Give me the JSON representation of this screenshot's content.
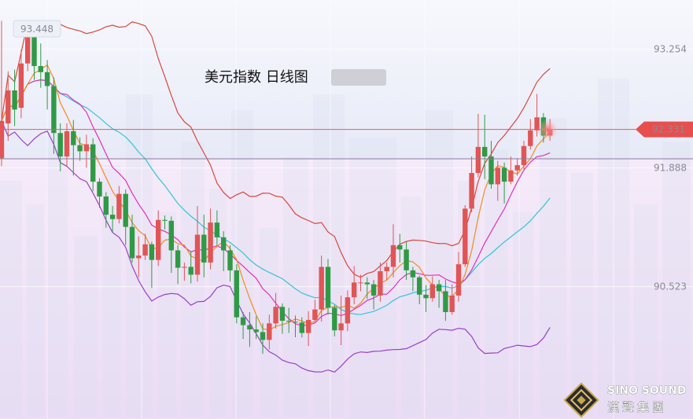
{
  "chart_data": {
    "type": "candlestick",
    "title": "美元指数 日线图",
    "y_ticks": [
      "93.254",
      "91.888",
      "90.523"
    ],
    "high_label": "93.448",
    "last_price_label": "92.331",
    "ylim": [
      89.0,
      93.82
    ],
    "candles": [
      [
        92.0,
        92.43,
        93.58,
        91.91
      ],
      [
        92.4,
        92.78,
        93.0,
        92.2
      ],
      [
        92.78,
        92.56,
        93.02,
        92.37
      ],
      [
        92.58,
        93.09,
        93.25,
        92.46
      ],
      [
        93.09,
        93.4,
        93.5,
        93.0
      ],
      [
        93.4,
        93.06,
        93.45,
        92.9
      ],
      [
        93.06,
        92.99,
        93.32,
        92.81
      ],
      [
        92.99,
        92.83,
        93.13,
        92.56
      ],
      [
        92.83,
        92.29,
        92.93,
        92.05
      ],
      [
        92.29,
        92.02,
        92.4,
        91.85
      ],
      [
        92.02,
        92.31,
        92.4,
        91.9
      ],
      [
        92.31,
        92.15,
        92.44,
        91.8
      ],
      [
        92.15,
        92.08,
        92.24,
        91.97
      ],
      [
        92.08,
        92.16,
        92.27,
        91.89
      ],
      [
        92.16,
        91.73,
        92.23,
        91.62
      ],
      [
        91.73,
        91.56,
        91.77,
        91.43
      ],
      [
        91.56,
        91.35,
        91.61,
        91.2
      ],
      [
        91.35,
        91.3,
        91.45,
        91.15
      ],
      [
        91.3,
        91.59,
        91.68,
        91.25
      ],
      [
        91.59,
        91.21,
        91.64,
        91.0
      ],
      [
        91.21,
        90.85,
        91.35,
        90.8
      ],
      [
        90.85,
        90.88,
        91.1,
        90.63
      ],
      [
        90.88,
        91.01,
        91.13,
        90.83
      ],
      [
        91.01,
        90.83,
        91.04,
        90.51
      ],
      [
        90.83,
        91.29,
        91.4,
        90.76
      ],
      [
        91.29,
        91.28,
        91.34,
        91.18
      ],
      [
        91.28,
        90.94,
        91.33,
        90.68
      ],
      [
        90.94,
        90.74,
        91.0,
        90.55
      ],
      [
        90.74,
        90.75,
        90.8,
        90.59
      ],
      [
        90.75,
        90.66,
        90.93,
        90.56
      ],
      [
        90.66,
        91.12,
        91.45,
        90.58
      ],
      [
        91.12,
        90.8,
        91.35,
        90.63
      ],
      [
        90.8,
        91.26,
        91.42,
        90.72
      ],
      [
        91.26,
        91.09,
        91.4,
        91.0
      ],
      [
        91.09,
        90.94,
        91.16,
        90.7
      ],
      [
        90.94,
        90.71,
        91.0,
        90.58
      ],
      [
        90.71,
        90.17,
        90.78,
        90.1
      ],
      [
        90.17,
        90.08,
        90.23,
        89.92
      ],
      [
        90.08,
        90.03,
        90.23,
        89.83
      ],
      [
        90.03,
        90.0,
        90.18,
        89.92
      ],
      [
        90.0,
        89.91,
        90.1,
        89.75
      ],
      [
        89.91,
        90.1,
        90.2,
        89.8
      ],
      [
        90.1,
        90.29,
        90.45,
        90.04
      ],
      [
        90.29,
        90.13,
        90.33,
        89.98
      ],
      [
        90.13,
        90.12,
        90.28,
        89.99
      ],
      [
        90.12,
        90.11,
        90.19,
        89.94
      ],
      [
        90.11,
        89.99,
        90.17,
        89.94
      ],
      [
        89.99,
        90.14,
        90.24,
        89.84
      ],
      [
        90.14,
        90.26,
        90.37,
        90.13
      ],
      [
        90.26,
        90.75,
        90.88,
        90.12
      ],
      [
        90.75,
        90.28,
        90.84,
        90.2
      ],
      [
        90.28,
        90.02,
        90.31,
        89.95
      ],
      [
        90.02,
        90.1,
        90.42,
        89.85
      ],
      [
        90.1,
        90.4,
        90.48,
        90.01
      ],
      [
        90.4,
        90.57,
        90.76,
        90.32
      ],
      [
        90.57,
        90.57,
        90.66,
        90.47
      ],
      [
        90.57,
        90.55,
        90.63,
        90.38
      ],
      [
        90.55,
        90.42,
        90.6,
        90.26
      ],
      [
        90.42,
        90.7,
        90.8,
        90.35
      ],
      [
        90.7,
        90.75,
        90.8,
        90.6
      ],
      [
        90.75,
        91.0,
        91.24,
        90.63
      ],
      [
        91.0,
        90.95,
        91.13,
        90.8
      ],
      [
        90.95,
        90.71,
        91.04,
        90.6
      ],
      [
        90.71,
        90.63,
        90.75,
        90.47
      ],
      [
        90.63,
        90.43,
        90.65,
        90.32
      ],
      [
        90.43,
        90.39,
        90.54,
        90.23
      ],
      [
        90.39,
        90.55,
        90.64,
        90.35
      ],
      [
        90.55,
        90.47,
        90.6,
        90.28
      ],
      [
        90.47,
        90.23,
        90.6,
        90.13
      ],
      [
        90.23,
        90.42,
        90.55,
        90.2
      ],
      [
        90.42,
        90.78,
        90.92,
        90.35
      ],
      [
        90.78,
        91.42,
        91.46,
        90.75
      ],
      [
        91.42,
        91.83,
        92.02,
        91.38
      ],
      [
        91.83,
        92.13,
        92.51,
        91.78
      ],
      [
        92.13,
        92.02,
        92.5,
        91.76
      ],
      [
        92.02,
        91.7,
        92.2,
        91.65
      ],
      [
        91.7,
        91.89,
        91.97,
        91.51
      ],
      [
        91.89,
        91.73,
        91.95,
        91.48
      ],
      [
        91.73,
        91.86,
        92.02,
        91.7
      ],
      [
        91.86,
        91.92,
        92.0,
        91.8
      ],
      [
        91.92,
        92.14,
        92.2,
        91.85
      ],
      [
        92.14,
        92.32,
        92.45,
        92.1
      ],
      [
        92.32,
        92.47,
        92.74,
        92.25
      ],
      [
        92.47,
        92.26,
        92.52,
        92.18
      ],
      [
        92.26,
        92.33,
        92.45,
        92.2
      ]
    ]
  },
  "brand": {
    "name_en": "SINO SOUND",
    "name_cn": "漢聲集團"
  }
}
